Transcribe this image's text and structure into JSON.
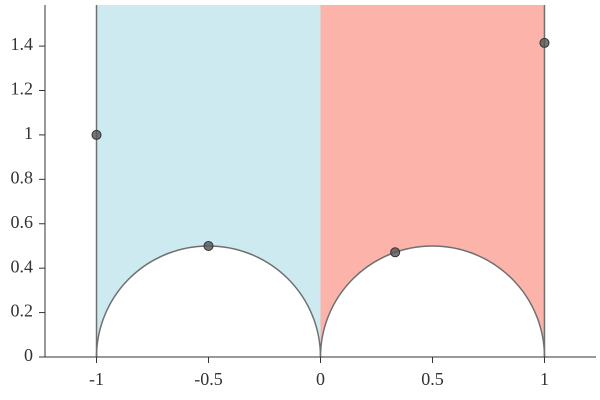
{
  "chart_data": {
    "type": "scatter",
    "x": [
      -1,
      -0.5,
      0.3333,
      1
    ],
    "values": [
      1,
      0.5,
      0.4714,
      1.4142
    ],
    "color": "#555555",
    "regions": [
      {
        "xrange": [
          -1,
          0
        ],
        "color": "#cdeaf0"
      },
      {
        "xrange": [
          0,
          1
        ],
        "color": "#fbb3aa"
      }
    ],
    "arcs": [
      {
        "center": -0.5,
        "radius": 0.5
      },
      {
        "center": 0.5,
        "radius": 0.5
      }
    ],
    "vlines": [
      -1,
      1
    ],
    "xlim": [
      -1.23,
      1.23
    ],
    "ylim": [
      0,
      1.585
    ],
    "xticks": [
      -1,
      -0.5,
      0,
      0.5,
      1
    ],
    "yticks": [
      0,
      0.2,
      0.4,
      0.6,
      0.8,
      1,
      1.2,
      1.4
    ]
  }
}
